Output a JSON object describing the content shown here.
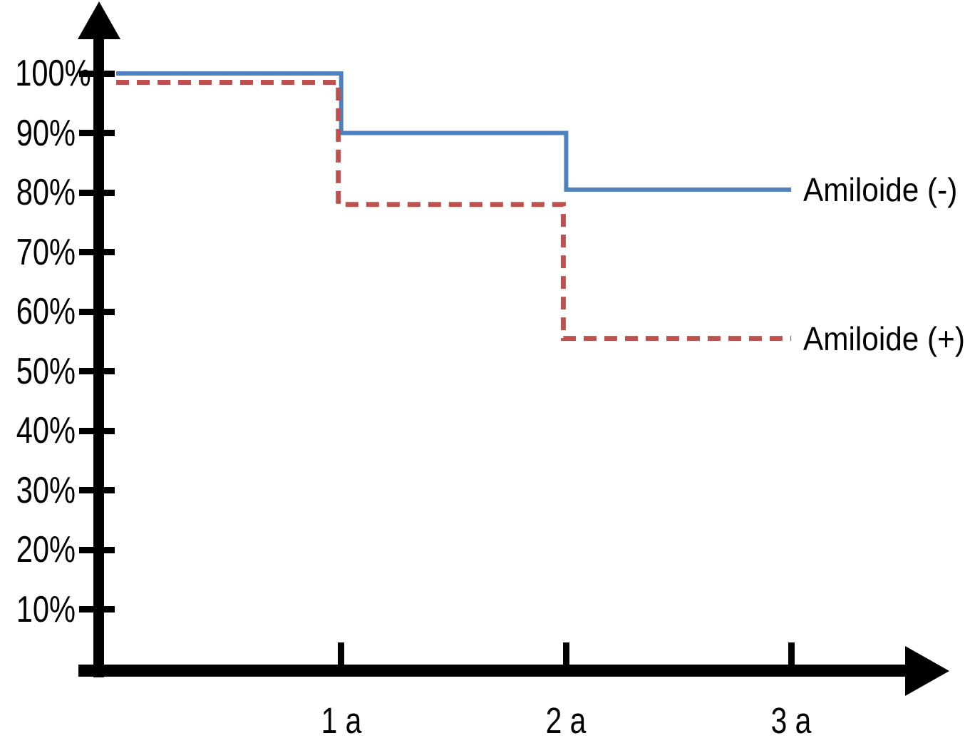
{
  "chart_data": {
    "type": "line",
    "subtype": "kaplan-meier-step-survival",
    "title": "",
    "xlabel": "",
    "ylabel": "",
    "grid": false,
    "background_color": "#ffffff",
    "axis_color": "#000000",
    "text_color": "#000000",
    "xlim_years": [
      0,
      3.75
    ],
    "ylim_percent": [
      0,
      110
    ],
    "legend_position": "labels-at-right-end-of-lines",
    "y_ticks": [
      {
        "value": 100,
        "label": "100%"
      },
      {
        "value": 90,
        "label": "90%"
      },
      {
        "value": 80,
        "label": "80%"
      },
      {
        "value": 70,
        "label": "70%"
      },
      {
        "value": 60,
        "label": "60%"
      },
      {
        "value": 50,
        "label": "50%"
      },
      {
        "value": 40,
        "label": "40%"
      },
      {
        "value": 30,
        "label": "30%"
      },
      {
        "value": 20,
        "label": "20%"
      },
      {
        "value": 10,
        "label": "10%"
      }
    ],
    "x_ticks": [
      {
        "value": 1,
        "label": "1 a"
      },
      {
        "value": 2,
        "label": "2 a"
      },
      {
        "value": 3,
        "label": "3 a"
      }
    ],
    "series": [
      {
        "name": "Amiloide (-)",
        "color": "#4E81BD",
        "line_style": "solid",
        "step_points": [
          [
            0,
            100
          ],
          [
            1,
            100
          ],
          [
            1,
            90
          ],
          [
            2,
            90
          ],
          [
            2,
            80.5
          ],
          [
            3,
            80.5
          ]
        ]
      },
      {
        "name": "Amiloide (+)",
        "color": "#C0504D",
        "line_style": "dashed",
        "step_points": [
          [
            0,
            98.5
          ],
          [
            1,
            98.5
          ],
          [
            1,
            78
          ],
          [
            2,
            78
          ],
          [
            2,
            55.5
          ],
          [
            3,
            55.5
          ]
        ]
      }
    ]
  }
}
